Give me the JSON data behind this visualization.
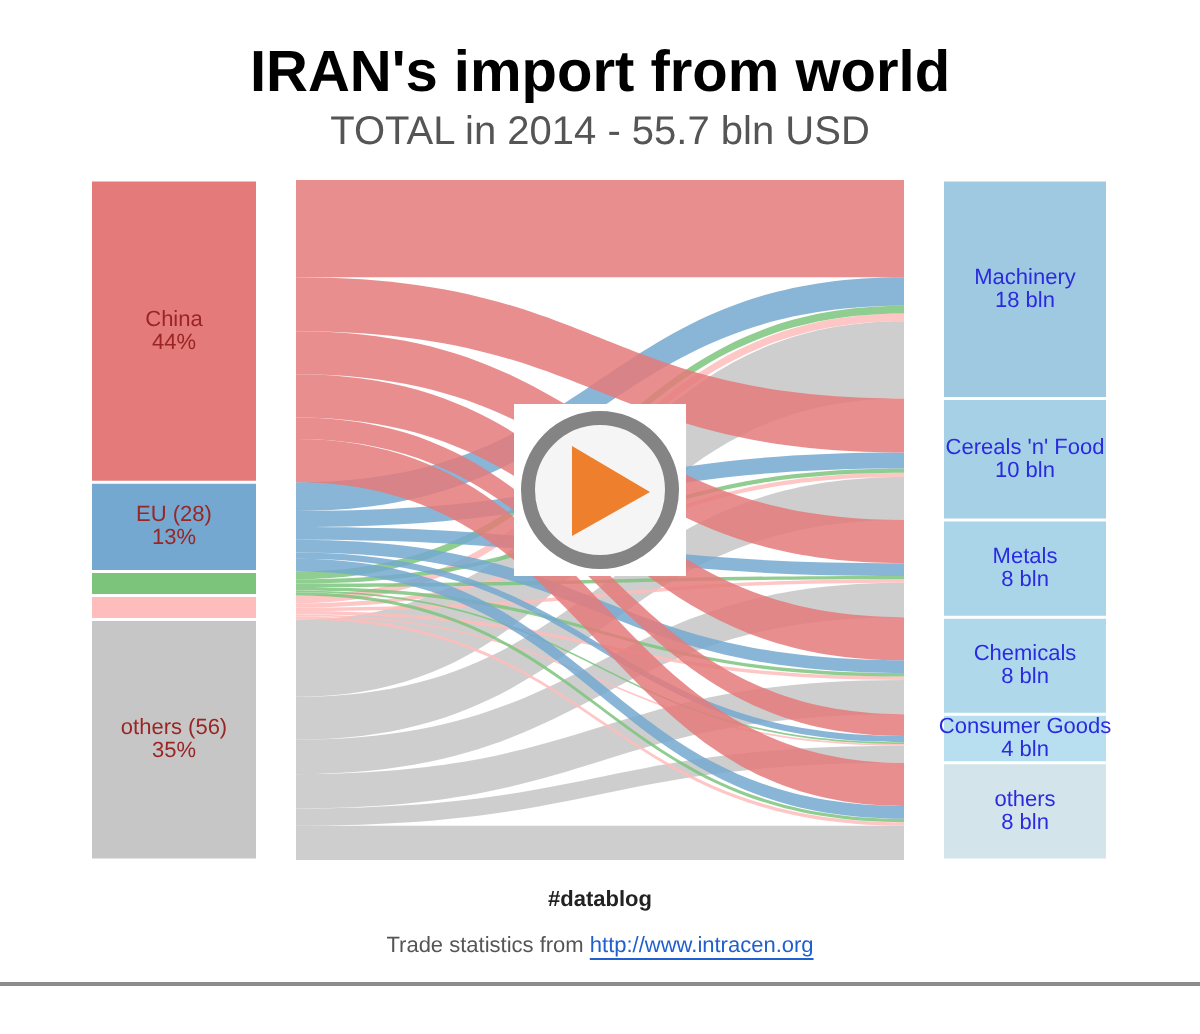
{
  "chart_data": {
    "type": "other",
    "title": "IRAN's import from world",
    "subtitle": "TOTAL in 2014 - 55.7 bln USD",
    "categories": [
      "China",
      "EU (28)",
      null,
      null,
      "others (56)",
      "Machinery",
      "Cereals 'n' Food",
      "Metals",
      "Chemicals",
      "Consumer Goods",
      "others"
    ],
    "series": [
      {
        "values": [
          44,
          13,
          null,
          null,
          35,
          null,
          null,
          null,
          null,
          null,
          null
        ],
        "value_labels": [
          "44%",
          "13%",
          null,
          null,
          "35%",
          null,
          null,
          null,
          null,
          null,
          null
        ],
        "colors": [
          "#e57a7a",
          "#74a8d0",
          "#7cc47c",
          "#ffbcbc",
          "#c6c6c6",
          null,
          null,
          null,
          null,
          null,
          null
        ]
      },
      {
        "values": [
          null,
          null,
          null,
          null,
          null,
          18,
          10,
          8,
          8,
          4,
          8
        ],
        "value_labels": [
          null,
          null,
          null,
          null,
          null,
          "18 bln",
          "10 bln",
          "8 bln",
          "8 bln",
          "4 bln",
          "8 bln"
        ],
        "colors": [
          null,
          null,
          null,
          null,
          null,
          "#9fc9e1",
          "#a5d0e5",
          "#aad5e8",
          "#afd9eb",
          "#b8dff0",
          "#d3e5ea"
        ]
      }
    ],
    "annotations": [
      "#datablog",
      "Trade statistics from http://www.intracen.org"
    ]
  }
}
